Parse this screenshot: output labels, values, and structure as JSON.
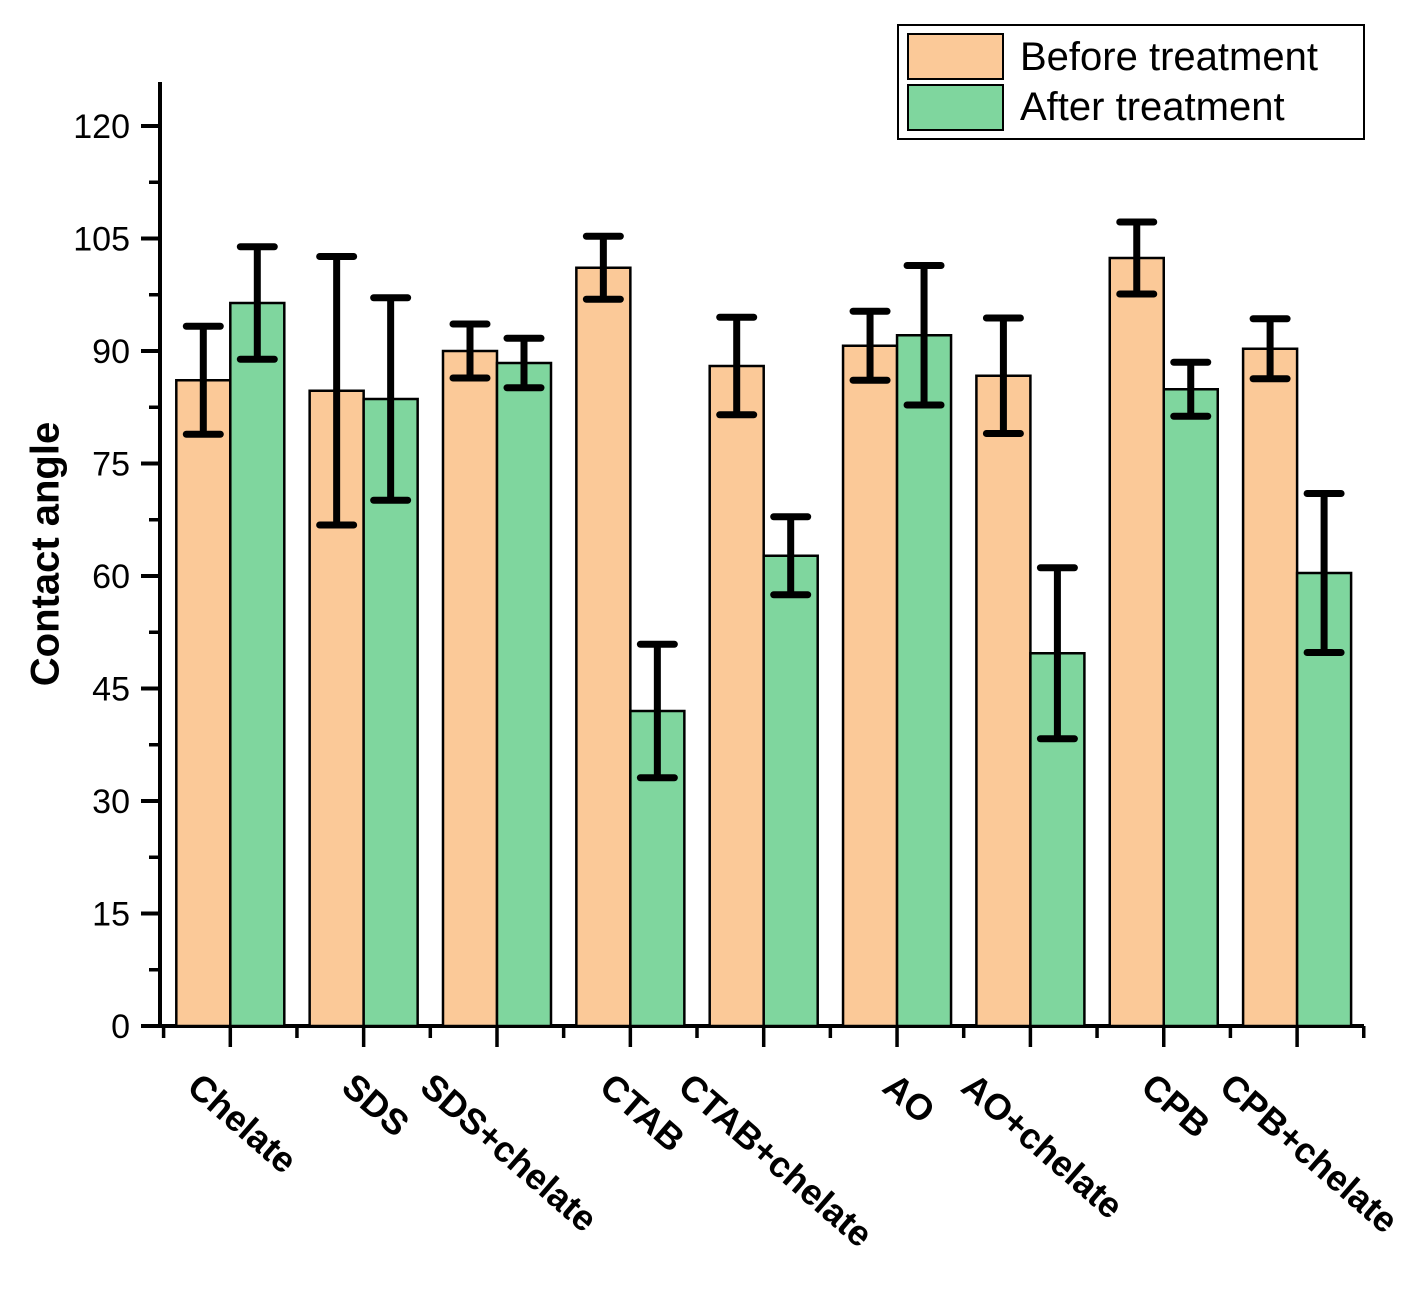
{
  "legend": {
    "items": [
      {
        "label": "Before treatment",
        "color": "#FBC998"
      },
      {
        "label": "After treatment",
        "color": "#7FD69E"
      }
    ]
  },
  "chart_data": {
    "type": "bar",
    "title": "",
    "xlabel": "",
    "ylabel": "Contact angle",
    "categories": [
      "Chelate",
      "SDS",
      "SDS+chelate",
      "CTAB",
      "CTAB+chelate",
      "AO",
      "AO+chelate",
      "CPB",
      "CPB+chelate"
    ],
    "series": [
      {
        "name": "Before treatment",
        "color": "#FBC998",
        "values": [
          86.1,
          84.7,
          90.0,
          101.1,
          88.0,
          90.7,
          86.7,
          102.4,
          90.3
        ],
        "errors": [
          7.2,
          17.9,
          3.6,
          4.2,
          6.5,
          4.6,
          7.7,
          4.8,
          4.0
        ]
      },
      {
        "name": "After treatment",
        "color": "#7FD69E",
        "values": [
          96.4,
          83.6,
          88.4,
          42.0,
          62.7,
          92.1,
          49.7,
          84.9,
          60.4
        ],
        "errors": [
          7.5,
          13.5,
          3.3,
          8.9,
          5.2,
          9.3,
          11.4,
          3.6,
          10.6
        ]
      }
    ],
    "ylim": [
      0,
      126
    ],
    "yticks": [
      0,
      15,
      30,
      45,
      60,
      75,
      90,
      105,
      120
    ],
    "minor_tick_step": 7.5,
    "grid": false,
    "legend_position": "top-right",
    "error_bars": true,
    "bar_outline_color": "#000000"
  }
}
